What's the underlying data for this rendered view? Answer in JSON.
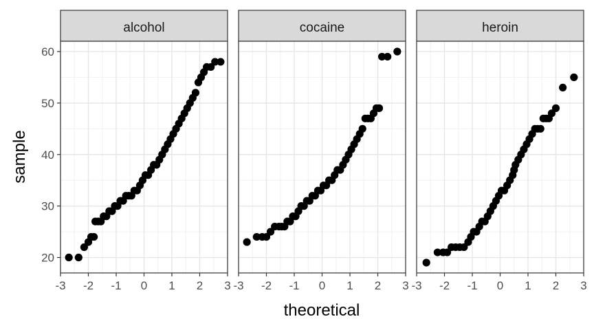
{
  "chart_data": {
    "type": "scatter",
    "xlabel": "theoretical",
    "ylabel": "sample",
    "xlim": [
      -3,
      3
    ],
    "ylim": [
      17,
      62
    ],
    "x_ticks": [
      -3,
      -2,
      -1,
      0,
      1,
      2,
      3
    ],
    "y_ticks": [
      20,
      30,
      40,
      50,
      60
    ],
    "x_tick_labels": [
      "-3",
      "-2",
      "-1",
      "0",
      "1",
      "2",
      "3"
    ],
    "y_tick_labels": [
      "20",
      "30",
      "40",
      "50",
      "60"
    ],
    "grid": true,
    "point_color": "#000000",
    "facets": [
      {
        "label": "alcohol",
        "points": [
          [
            -2.7,
            20
          ],
          [
            -2.35,
            20
          ],
          [
            -2.15,
            22
          ],
          [
            -2.0,
            23
          ],
          [
            -1.9,
            24
          ],
          [
            -1.8,
            24
          ],
          [
            -1.75,
            27
          ],
          [
            -1.65,
            27
          ],
          [
            -1.55,
            27
          ],
          [
            -1.45,
            28
          ],
          [
            -1.35,
            28
          ],
          [
            -1.25,
            29
          ],
          [
            -1.15,
            29
          ],
          [
            -1.05,
            30
          ],
          [
            -0.95,
            30
          ],
          [
            -0.85,
            31
          ],
          [
            -0.75,
            31
          ],
          [
            -0.65,
            32
          ],
          [
            -0.55,
            32
          ],
          [
            -0.45,
            32
          ],
          [
            -0.35,
            33
          ],
          [
            -0.25,
            33
          ],
          [
            -0.15,
            34
          ],
          [
            -0.05,
            35
          ],
          [
            0.05,
            36
          ],
          [
            0.15,
            36
          ],
          [
            0.25,
            37
          ],
          [
            0.35,
            38
          ],
          [
            0.45,
            38
          ],
          [
            0.55,
            39
          ],
          [
            0.65,
            40
          ],
          [
            0.75,
            41
          ],
          [
            0.85,
            42
          ],
          [
            0.95,
            43
          ],
          [
            1.05,
            44
          ],
          [
            1.15,
            45
          ],
          [
            1.25,
            46
          ],
          [
            1.35,
            47
          ],
          [
            1.45,
            48
          ],
          [
            1.55,
            49
          ],
          [
            1.65,
            50
          ],
          [
            1.75,
            51
          ],
          [
            1.85,
            52
          ],
          [
            1.95,
            54
          ],
          [
            2.05,
            55
          ],
          [
            2.15,
            56
          ],
          [
            2.25,
            57
          ],
          [
            2.4,
            57
          ],
          [
            2.55,
            58
          ],
          [
            2.75,
            58
          ]
        ]
      },
      {
        "label": "cocaine",
        "points": [
          [
            -2.7,
            23
          ],
          [
            -2.35,
            24
          ],
          [
            -2.15,
            24
          ],
          [
            -2.0,
            24
          ],
          [
            -1.85,
            25
          ],
          [
            -1.7,
            26
          ],
          [
            -1.55,
            26
          ],
          [
            -1.45,
            26
          ],
          [
            -1.35,
            26
          ],
          [
            -1.25,
            27
          ],
          [
            -1.15,
            27
          ],
          [
            -1.05,
            28
          ],
          [
            -0.95,
            28
          ],
          [
            -0.85,
            29
          ],
          [
            -0.75,
            30
          ],
          [
            -0.65,
            30
          ],
          [
            -0.55,
            31
          ],
          [
            -0.45,
            31
          ],
          [
            -0.35,
            32
          ],
          [
            -0.25,
            32
          ],
          [
            -0.15,
            33
          ],
          [
            -0.05,
            33
          ],
          [
            0.05,
            34
          ],
          [
            0.15,
            34
          ],
          [
            0.25,
            35
          ],
          [
            0.35,
            35
          ],
          [
            0.45,
            36
          ],
          [
            0.55,
            37
          ],
          [
            0.65,
            37
          ],
          [
            0.75,
            38
          ],
          [
            0.85,
            39
          ],
          [
            0.95,
            40
          ],
          [
            1.05,
            41
          ],
          [
            1.15,
            42
          ],
          [
            1.25,
            43
          ],
          [
            1.35,
            44
          ],
          [
            1.45,
            45
          ],
          [
            1.55,
            47
          ],
          [
            1.65,
            47
          ],
          [
            1.75,
            47
          ],
          [
            1.85,
            48
          ],
          [
            1.95,
            49
          ],
          [
            2.05,
            49
          ],
          [
            2.15,
            59
          ],
          [
            2.35,
            59
          ],
          [
            2.7,
            60
          ]
        ]
      },
      {
        "label": "heroin",
        "points": [
          [
            -2.65,
            19
          ],
          [
            -2.25,
            21
          ],
          [
            -2.05,
            21
          ],
          [
            -1.9,
            21
          ],
          [
            -1.75,
            22
          ],
          [
            -1.6,
            22
          ],
          [
            -1.45,
            22
          ],
          [
            -1.3,
            22
          ],
          [
            -1.15,
            23
          ],
          [
            -1.05,
            24
          ],
          [
            -0.95,
            25
          ],
          [
            -0.85,
            25
          ],
          [
            -0.75,
            26
          ],
          [
            -0.65,
            27
          ],
          [
            -0.55,
            27
          ],
          [
            -0.45,
            28
          ],
          [
            -0.35,
            29
          ],
          [
            -0.25,
            30
          ],
          [
            -0.15,
            31
          ],
          [
            -0.05,
            32
          ],
          [
            0.05,
            33
          ],
          [
            0.15,
            33
          ],
          [
            0.25,
            34
          ],
          [
            0.35,
            35
          ],
          [
            0.45,
            36
          ],
          [
            0.5,
            37
          ],
          [
            0.55,
            38
          ],
          [
            0.65,
            39
          ],
          [
            0.75,
            40
          ],
          [
            0.85,
            41
          ],
          [
            0.95,
            42
          ],
          [
            1.05,
            43
          ],
          [
            1.15,
            44
          ],
          [
            1.25,
            45
          ],
          [
            1.35,
            45
          ],
          [
            1.45,
            45
          ],
          [
            1.55,
            47
          ],
          [
            1.65,
            47
          ],
          [
            1.75,
            47
          ],
          [
            1.85,
            48
          ],
          [
            2.0,
            49
          ],
          [
            2.25,
            53
          ],
          [
            2.65,
            55
          ]
        ]
      }
    ]
  }
}
